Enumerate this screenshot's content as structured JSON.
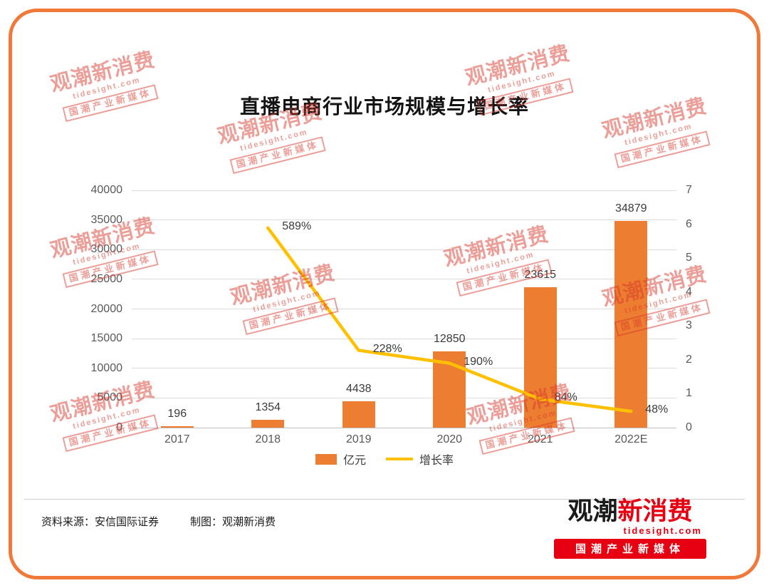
{
  "title": "直播电商行业市场规模与增长率",
  "watermark": {
    "line1": "观潮新消费",
    "line2": "tidesight.com",
    "line3": "国潮产业新媒体"
  },
  "chart_data": {
    "type": "bar+line",
    "title": "直播电商行业市场规模与增长率",
    "categories": [
      "2017",
      "2018",
      "2019",
      "2020",
      "2021",
      "2022E"
    ],
    "series": [
      {
        "name": "亿元",
        "type": "bar",
        "axis": "left",
        "color": "#ED7D31",
        "values": [
          196,
          1354,
          4438,
          12850,
          23615,
          34879
        ]
      },
      {
        "name": "增长率",
        "type": "line",
        "axis": "right",
        "color": "#FFC000",
        "values_percent": [
          null,
          589,
          228,
          190,
          84,
          48
        ],
        "labels": [
          null,
          "589%",
          "228%",
          "190%",
          "84%",
          "48%"
        ]
      }
    ],
    "left_axis": {
      "min": 0,
      "max": 40000,
      "step": 5000,
      "ticks": [
        "0",
        "5000",
        "10000",
        "15000",
        "20000",
        "25000",
        "30000",
        "35000",
        "40000"
      ]
    },
    "right_axis": {
      "min": 0,
      "max": 7,
      "step": 1,
      "ticks": [
        "0",
        "1",
        "2",
        "3",
        "4",
        "5",
        "6",
        "7"
      ]
    },
    "grid": true,
    "legend_position": "bottom"
  },
  "footer": {
    "source": "资料来源：安信国际证券",
    "maker": "制图：观潮新消费",
    "logo": {
      "name_black": "观潮",
      "name_red": "新消费",
      "url": "tidesight.com",
      "tagline": "国潮产业新媒体"
    }
  },
  "colors": {
    "bar": "#ED7D31",
    "line": "#FFC000",
    "border": "#F0793A",
    "watermark": "#D8372A",
    "logo_red": "#E60012"
  }
}
